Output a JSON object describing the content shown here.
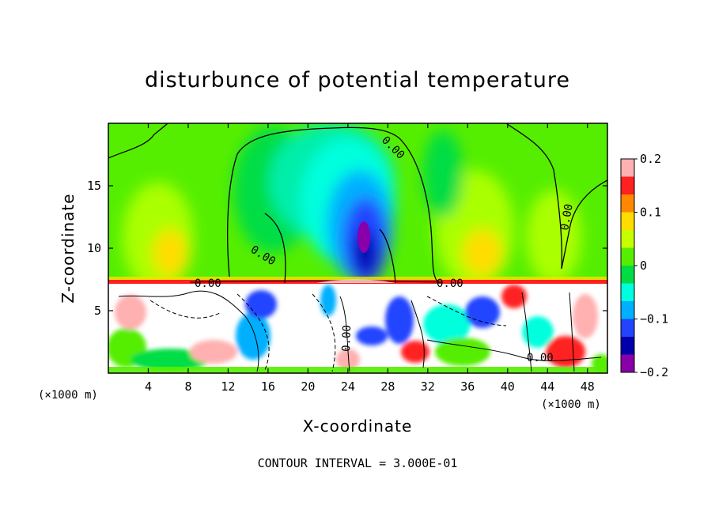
{
  "chart_data": {
    "type": "heatmap",
    "title": "disturbunce of potential temperature",
    "xlabel": "X-coordinate",
    "ylabel": "Z-coordinate",
    "x_unit": "(×1000 m)",
    "z_unit": "(×1000 m)",
    "xlim": [
      0,
      50
    ],
    "ylim": [
      0,
      20
    ],
    "x_ticks": [
      4,
      8,
      12,
      16,
      20,
      24,
      28,
      32,
      36,
      40,
      44,
      48
    ],
    "y_ticks": [
      5,
      10,
      15
    ],
    "colorbar": {
      "range": [
        -0.2,
        0.2
      ],
      "tick_values": [
        0.2,
        0.1,
        0,
        -0.1,
        -0.2
      ],
      "tick_labels": [
        "0.2",
        "0.1",
        "0",
        "−0.1",
        "−0.2"
      ],
      "colors": [
        "#ffb0b0",
        "#ff2020",
        "#ff8800",
        "#ffdd00",
        "#c8ff00",
        "#55ee00",
        "#00dd44",
        "#00ffdd",
        "#00b0ff",
        "#2244ff",
        "#0000aa",
        "#8800aa"
      ]
    },
    "contour_labels": [
      "0.00",
      "0.00",
      "0.00",
      "0.00",
      "0.00",
      "0.00",
      "0.00",
      "0.00"
    ],
    "contour_interval_text": "CONTOUR INTERVAL = 3.000E-01"
  }
}
